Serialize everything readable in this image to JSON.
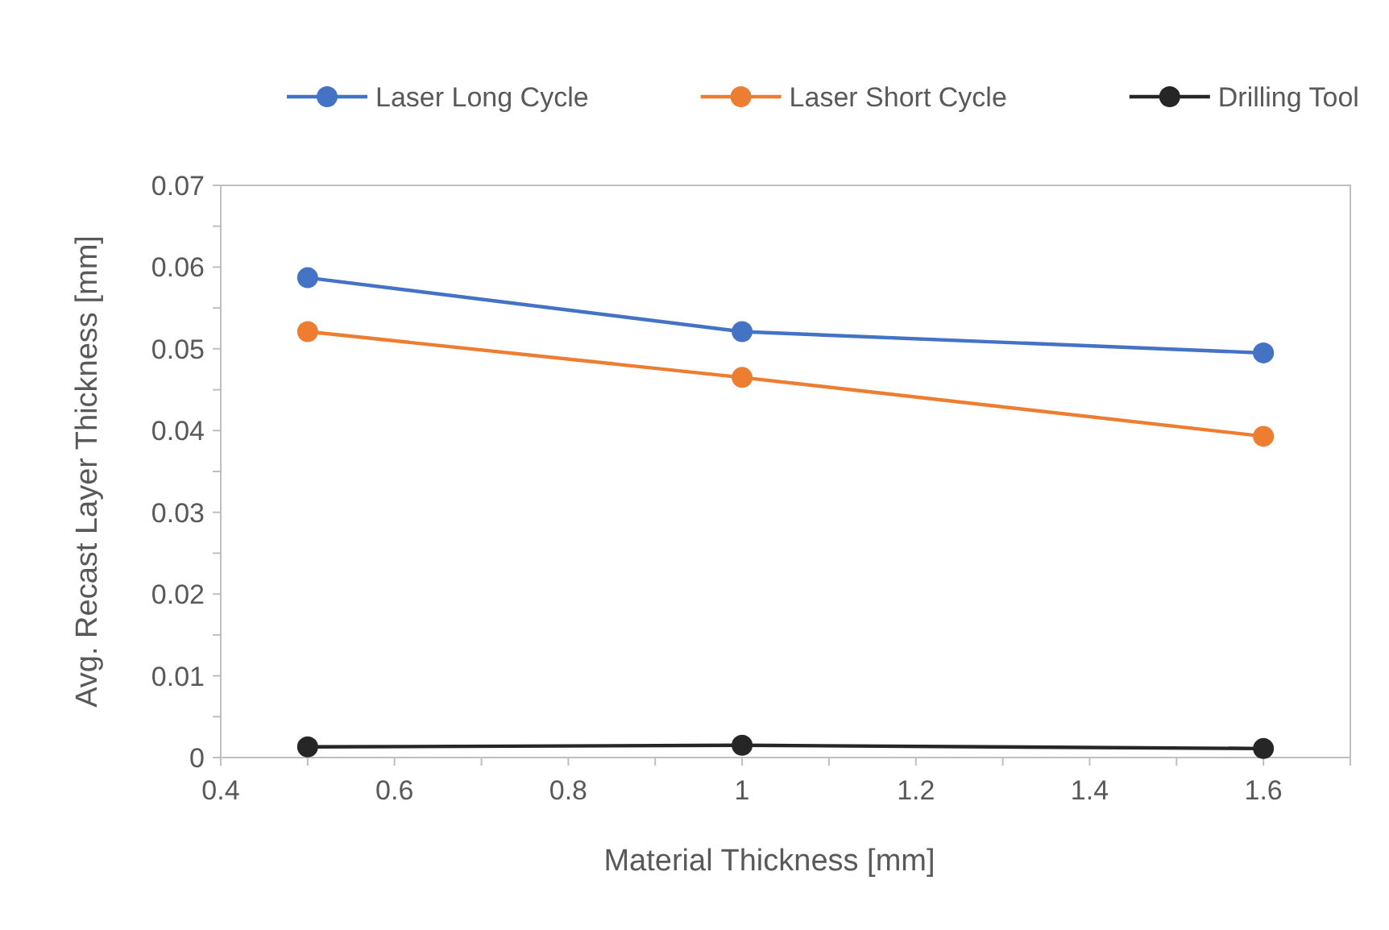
{
  "chart_data": {
    "type": "line",
    "xlabel": "Material Thickness [mm]",
    "ylabel": "Avg. Recast Layer Thickness [mm]",
    "x": [
      0.5,
      1,
      1.6
    ],
    "series": [
      {
        "name": "Laser Long Cycle",
        "color": "#4472c4",
        "values": [
          0.0587,
          0.0521,
          0.0495
        ]
      },
      {
        "name": "Laser Short Cycle",
        "color": "#ed7d31",
        "values": [
          0.0521,
          0.0465,
          0.0393
        ]
      },
      {
        "name": "Drilling Tool",
        "color": "#262626",
        "values": [
          0.0013,
          0.0015,
          0.0011
        ]
      }
    ],
    "xlim": [
      0.4,
      1.7
    ],
    "xticks": [
      0.4,
      {
        "value": 0.5,
        "label": null
      },
      0.6,
      {
        "value": 0.7,
        "label": null
      },
      0.8,
      {
        "value": 0.9,
        "label": null
      },
      1,
      {
        "value": 1.1,
        "label": null
      },
      1.2,
      {
        "value": 1.3,
        "label": null
      },
      1.4,
      {
        "value": 1.5,
        "label": null
      },
      1.6,
      {
        "value": 1.7,
        "label": null
      }
    ],
    "ylim": [
      0,
      0.07
    ],
    "yticks": [
      0,
      {
        "value": 0.005,
        "label": null
      },
      0.01,
      {
        "value": 0.015,
        "label": null
      },
      0.02,
      {
        "value": 0.025,
        "label": null
      },
      0.03,
      {
        "value": 0.035,
        "label": null
      },
      0.04,
      {
        "value": 0.045,
        "label": null
      },
      0.05,
      {
        "value": 0.055,
        "label": null
      },
      0.06,
      {
        "value": 0.065,
        "label": null
      },
      0.07
    ],
    "grid": false,
    "legend": "top",
    "marker": "circle",
    "line_style": "solid"
  }
}
